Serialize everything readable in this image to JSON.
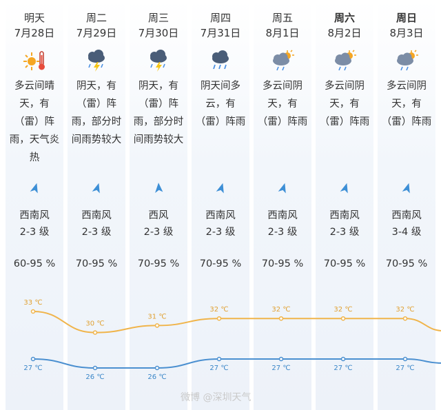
{
  "days": [
    {
      "day": "明天",
      "date": "7月28日",
      "icon": "sun-thermometer-icon",
      "desc": "多云间晴天，有（雷）阵雨，天气炎热",
      "wind": "西南风",
      "level": "2-3 级",
      "humidity": "60-95 %",
      "high": "33 ℃",
      "low": "27 ℃",
      "bold": false
    },
    {
      "day": "周二",
      "date": "7月29日",
      "icon": "thunderstorm-icon",
      "desc": "阴天，有（雷）阵雨，部分时间雨势较大",
      "wind": "西南风",
      "level": "2-3 级",
      "humidity": "70-95 %",
      "high": "30 ℃",
      "low": "26 ℃",
      "bold": false
    },
    {
      "day": "周三",
      "date": "7月30日",
      "icon": "thunderstorm-icon",
      "desc": "阴天，有（雷）阵雨，部分时间雨势较大",
      "wind": "西风",
      "level": "2-3 级",
      "humidity": "70-95 %",
      "high": "31 ℃",
      "low": "26 ℃",
      "bold": false
    },
    {
      "day": "周四",
      "date": "7月31日",
      "icon": "rain-cloud-icon",
      "desc": "阴天间多云，有（雷）阵雨",
      "wind": "西南风",
      "level": "2-3 级",
      "humidity": "70-95 %",
      "high": "32 ℃",
      "low": "27 ℃",
      "bold": false
    },
    {
      "day": "周五",
      "date": "8月1日",
      "icon": "partly-cloudy-rain-icon",
      "desc": "多云间阴天，有（雷）阵雨",
      "wind": "西南风",
      "level": "2-3 级",
      "humidity": "70-95 %",
      "high": "32 ℃",
      "low": "27 ℃",
      "bold": false
    },
    {
      "day": "周六",
      "date": "8月2日",
      "icon": "partly-cloudy-rain-icon",
      "desc": "多云间阴天，有（雷）阵雨",
      "wind": "西南风",
      "level": "2-3 级",
      "humidity": "70-95 %",
      "high": "32 ℃",
      "low": "27 ℃",
      "bold": true
    },
    {
      "day": "周日",
      "date": "8月3日",
      "icon": "partly-cloudy-rain-icon",
      "desc": "多云间阴天，有（雷）阵雨",
      "wind": "西南风",
      "level": "3-4 级",
      "humidity": "70-95 %",
      "high": "32 ℃",
      "low": "27 ℃",
      "bold": true
    }
  ],
  "watermark": "微博 @深圳天气",
  "colors": {
    "high_line": "#f0b44a",
    "low_line": "#4a8fd0",
    "high_text": "#e0a030",
    "low_text": "#3a86c8",
    "arrow": "#3d8fd6"
  }
}
